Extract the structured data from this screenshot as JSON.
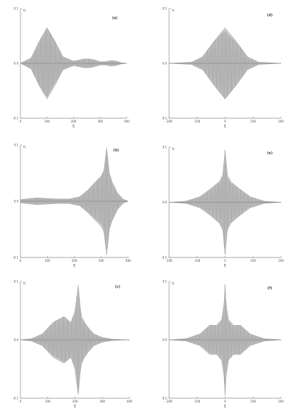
{
  "chart_data": [
    {
      "type": "area",
      "panel_label": "a",
      "xlabel": "ξ",
      "ylabel": "η",
      "xlim": [
        0,
        400
      ],
      "ylim": [
        -0.1,
        0.1
      ],
      "xticks": [
        "0",
        "100",
        "200",
        "300",
        "400"
      ],
      "yticks": [
        "0.1",
        "0.0",
        "-0.1"
      ],
      "envelope": {
        "x": [
          0,
          40,
          70,
          100,
          130,
          160,
          200,
          240,
          260,
          280,
          300,
          320,
          340,
          360,
          380,
          400
        ],
        "amp": [
          0.0,
          0.01,
          0.04,
          0.065,
          0.04,
          0.012,
          0.004,
          0.008,
          0.008,
          0.006,
          0.003,
          0.003,
          0.005,
          0.004,
          0.001,
          0.0
        ]
      }
    },
    {
      "type": "area",
      "panel_label": "d",
      "xlabel": "ξ",
      "ylabel": "η",
      "xlim": [
        -200,
        200
      ],
      "ylim": [
        -0.1,
        0.1
      ],
      "xticks": [
        "-200",
        "-100",
        "0",
        "100",
        "200"
      ],
      "yticks": [
        "0.1",
        "0.0",
        "-0.1"
      ],
      "envelope": {
        "x": [
          -200,
          -120,
          -80,
          -40,
          0,
          40,
          80,
          120,
          200
        ],
        "amp": [
          0.0,
          0.002,
          0.012,
          0.04,
          0.065,
          0.04,
          0.012,
          0.002,
          0.0
        ]
      }
    },
    {
      "type": "area",
      "panel_label": "b",
      "xlabel": "ξ",
      "ylabel": "η",
      "xlim": [
        0,
        400
      ],
      "ylim": [
        -0.1,
        0.1
      ],
      "xticks": [
        "0",
        "100",
        "200",
        "300",
        "400"
      ],
      "yticks": [
        "0.1",
        "0.0",
        "-0.1"
      ],
      "envelope": {
        "x": [
          0,
          20,
          60,
          100,
          140,
          180,
          220,
          250,
          280,
          300,
          310,
          320,
          330,
          340,
          360,
          380,
          400
        ],
        "amp": [
          0.003,
          0.004,
          0.006,
          0.005,
          0.004,
          0.004,
          0.008,
          0.02,
          0.035,
          0.045,
          0.055,
          0.095,
          0.05,
          0.035,
          0.015,
          0.004,
          0.0
        ]
      }
    },
    {
      "type": "area",
      "panel_label": "e",
      "xlabel": "ξ",
      "ylabel": "η",
      "xlim": [
        -200,
        200
      ],
      "ylim": [
        -0.1,
        0.1
      ],
      "xticks": [
        "-200",
        "-100",
        "0",
        "100",
        "200"
      ],
      "yticks": [
        "0.1",
        "0.0",
        "-0.1"
      ],
      "envelope": {
        "x": [
          -200,
          -140,
          -90,
          -50,
          -20,
          -8,
          0,
          8,
          20,
          50,
          90,
          140,
          200
        ],
        "amp": [
          0.0,
          0.002,
          0.01,
          0.025,
          0.038,
          0.05,
          0.095,
          0.05,
          0.038,
          0.025,
          0.01,
          0.002,
          0.0
        ]
      }
    },
    {
      "type": "area",
      "panel_label": "c",
      "xlabel": "ξ",
      "ylabel": "η",
      "xlim": [
        0,
        400
      ],
      "ylim": [
        -0.1,
        0.1
      ],
      "xticks": [
        "0",
        "100",
        "200",
        "300",
        "400"
      ],
      "yticks": [
        "0.1",
        "0.0",
        "-0.1"
      ],
      "envelope": {
        "x": [
          0,
          40,
          80,
          120,
          160,
          185,
          200,
          212,
          218,
          224,
          235,
          250,
          270,
          300,
          340,
          400
        ],
        "amp": [
          0.0,
          0.002,
          0.01,
          0.03,
          0.04,
          0.03,
          0.05,
          0.095,
          0.06,
          0.04,
          0.03,
          0.02,
          0.01,
          0.004,
          0.001,
          0.0
        ]
      }
    },
    {
      "type": "area",
      "panel_label": "f",
      "xlabel": "ξ",
      "ylabel": "η",
      "xlim": [
        -200,
        200
      ],
      "ylim": [
        -0.1,
        0.1
      ],
      "xticks": [
        "-200",
        "-100",
        "0",
        "100",
        "200"
      ],
      "yticks": [
        "0.1",
        "0.0",
        "-0.1"
      ],
      "envelope": {
        "x": [
          -200,
          -140,
          -90,
          -55,
          -30,
          -12,
          -4,
          0,
          4,
          12,
          30,
          55,
          90,
          140,
          200
        ],
        "amp": [
          0.0,
          0.002,
          0.01,
          0.025,
          0.025,
          0.035,
          0.06,
          0.095,
          0.06,
          0.035,
          0.025,
          0.025,
          0.01,
          0.002,
          0.0
        ]
      }
    }
  ]
}
